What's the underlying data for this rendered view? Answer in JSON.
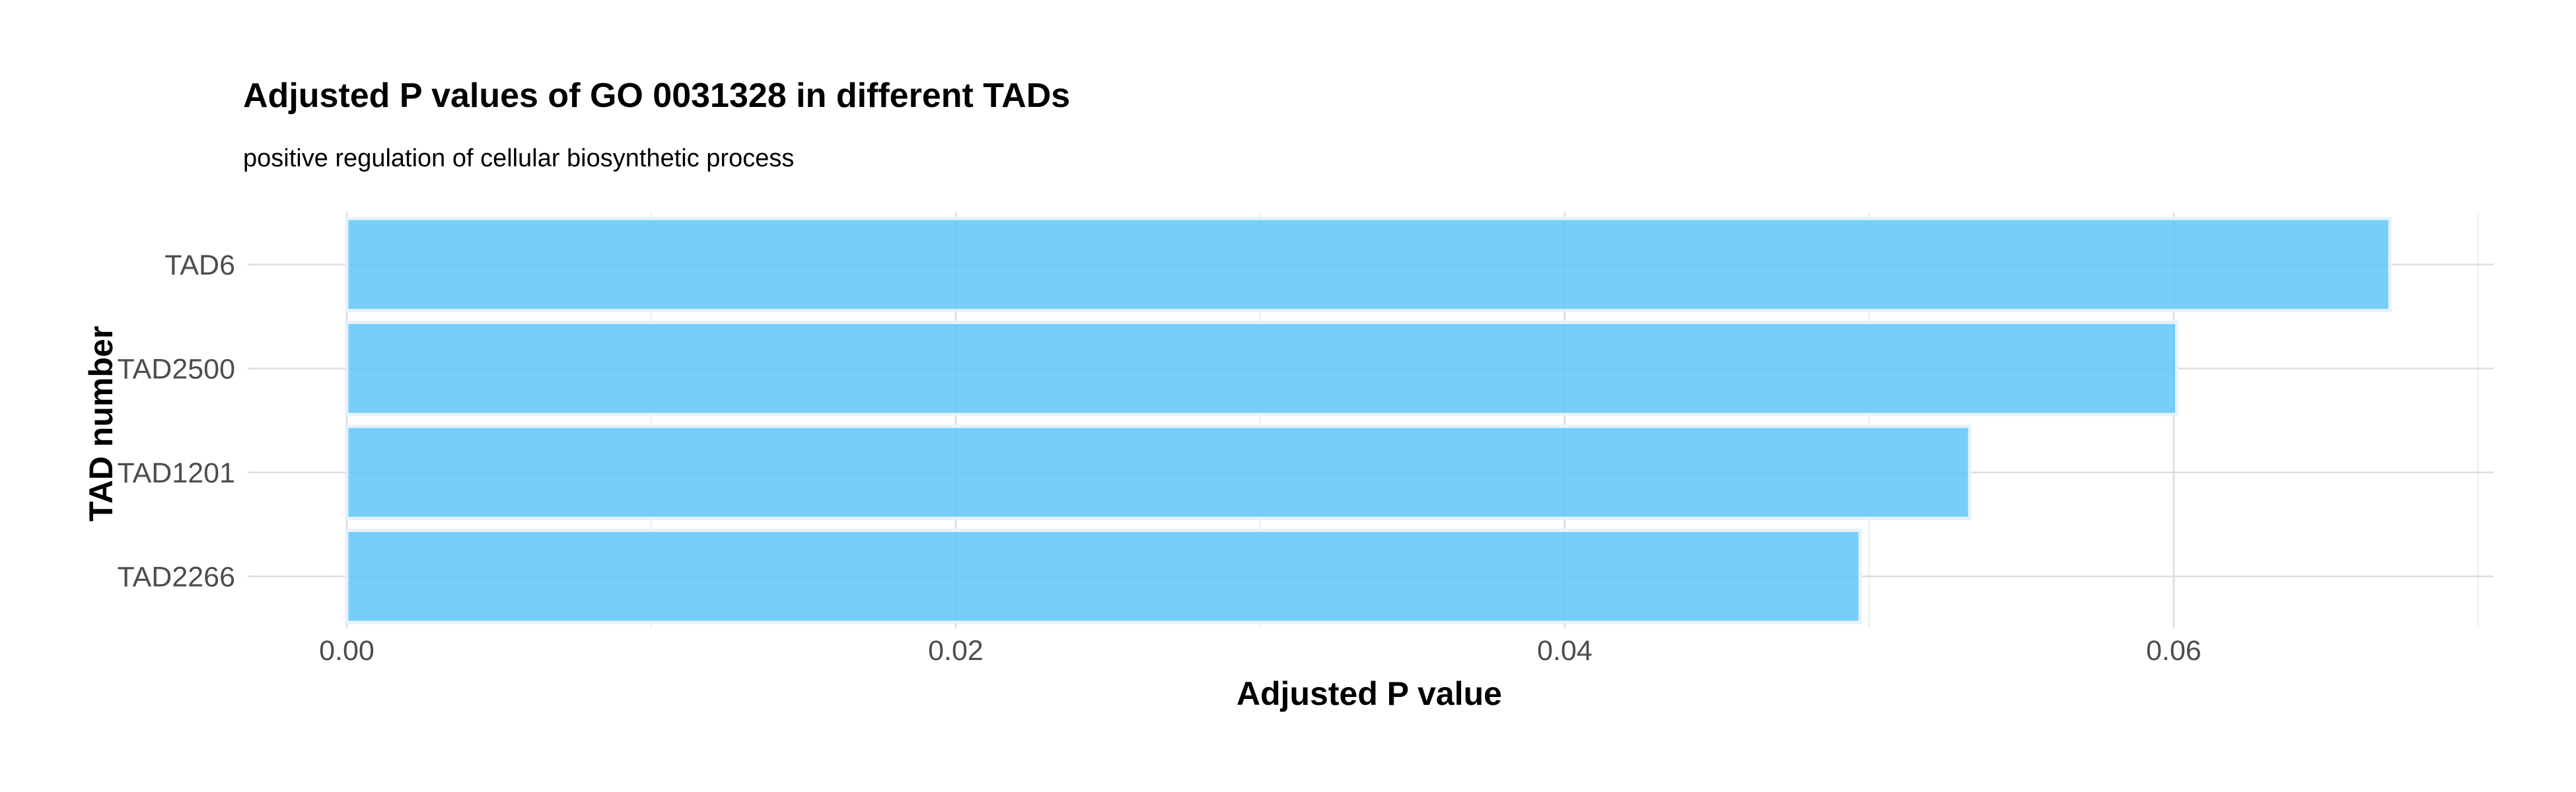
{
  "chart_data": {
    "type": "bar",
    "orientation": "horizontal",
    "title": "Adjusted P values of GO 0031328 in different TADs",
    "subtitle": "positive regulation of cellular biosynthetic process",
    "xlabel": "Adjusted P value",
    "ylabel": "TAD number",
    "categories": [
      "TAD6",
      "TAD2500",
      "TAD1201",
      "TAD2266"
    ],
    "values": [
      0.0671,
      0.0601,
      0.0533,
      0.0497
    ],
    "xlim": [
      0,
      0.0705
    ],
    "xticks": [
      0.0,
      0.02,
      0.04,
      0.06
    ],
    "xtick_labels": [
      "0.00",
      "0.02",
      "0.04",
      "0.06"
    ],
    "bar_color": "#5fc5f8",
    "grid": true,
    "legend": "none"
  }
}
